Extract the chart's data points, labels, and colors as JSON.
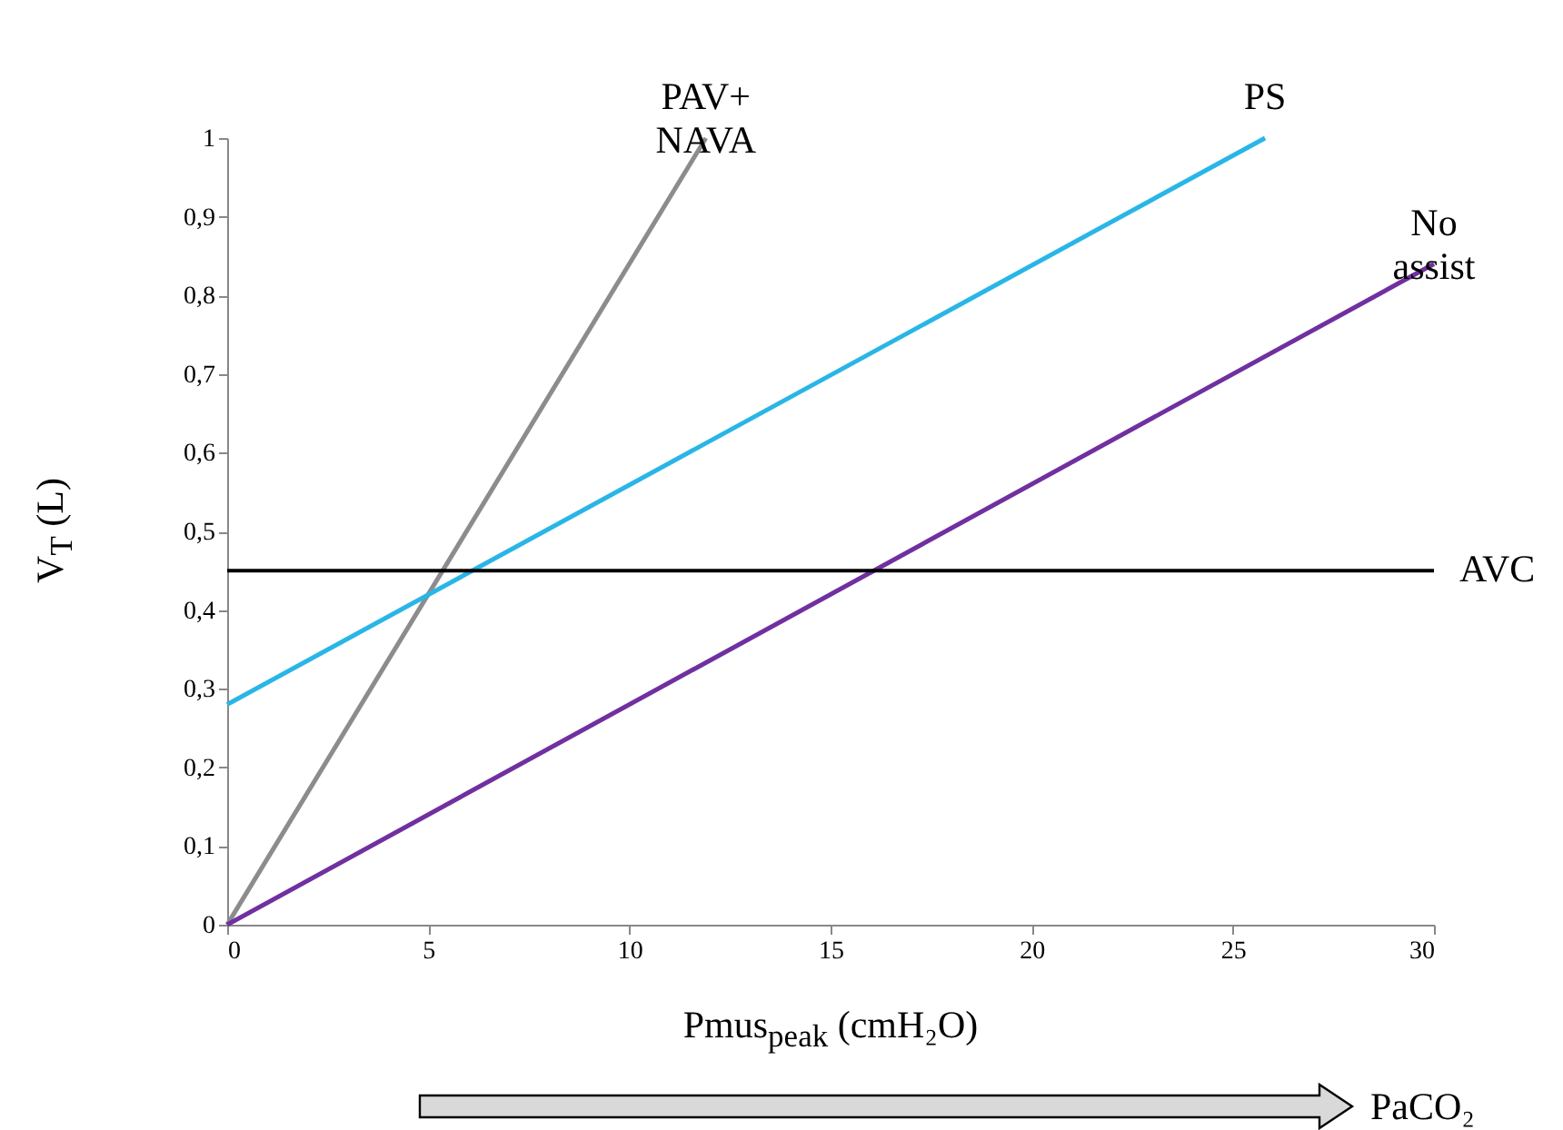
{
  "chart_data": {
    "type": "line",
    "xlabel": "Pmus$_{peak}$ (cmH₂O)",
    "ylabel": "V$_{T}$ (L)",
    "xlim": [
      0,
      30
    ],
    "xticks": [
      0,
      5,
      10,
      15,
      20,
      25,
      30
    ],
    "ylim": [
      0,
      1
    ],
    "yticks": [
      0,
      {
        "value": 0.1,
        "label": "0,1"
      },
      {
        "value": 0.2,
        "label": "0,2"
      },
      {
        "value": 0.3,
        "label": "0,3"
      },
      {
        "value": 0.4,
        "label": "0,4"
      },
      {
        "value": 0.5,
        "label": "0,5"
      },
      {
        "value": 0.6,
        "label": "0,6"
      },
      {
        "value": 0.7,
        "label": "0,7"
      },
      {
        "value": 0.8,
        "label": "0,8"
      },
      {
        "value": 0.9,
        "label": "0,9"
      },
      1
    ],
    "grid": false,
    "legend": false,
    "marker": "none",
    "line_style": "solid",
    "series": [
      {
        "name": "PAV+ NAVA",
        "color": "#8c8c8c",
        "x": [
          0,
          11.9
        ],
        "values": [
          0,
          1
        ]
      },
      {
        "name": "PS",
        "color": "#29b6e6",
        "x": [
          0,
          25.8
        ],
        "values": [
          0.28,
          1
        ]
      },
      {
        "name": "No assist",
        "color": "#7030a0",
        "x": [
          0,
          30
        ],
        "values": [
          0,
          0.84
        ]
      }
    ],
    "ref_lines": [
      {
        "axis": "y",
        "value": 0.45,
        "label": "AVC",
        "color": "#000000"
      }
    ],
    "annotations": [
      "PaCO₂"
    ]
  }
}
